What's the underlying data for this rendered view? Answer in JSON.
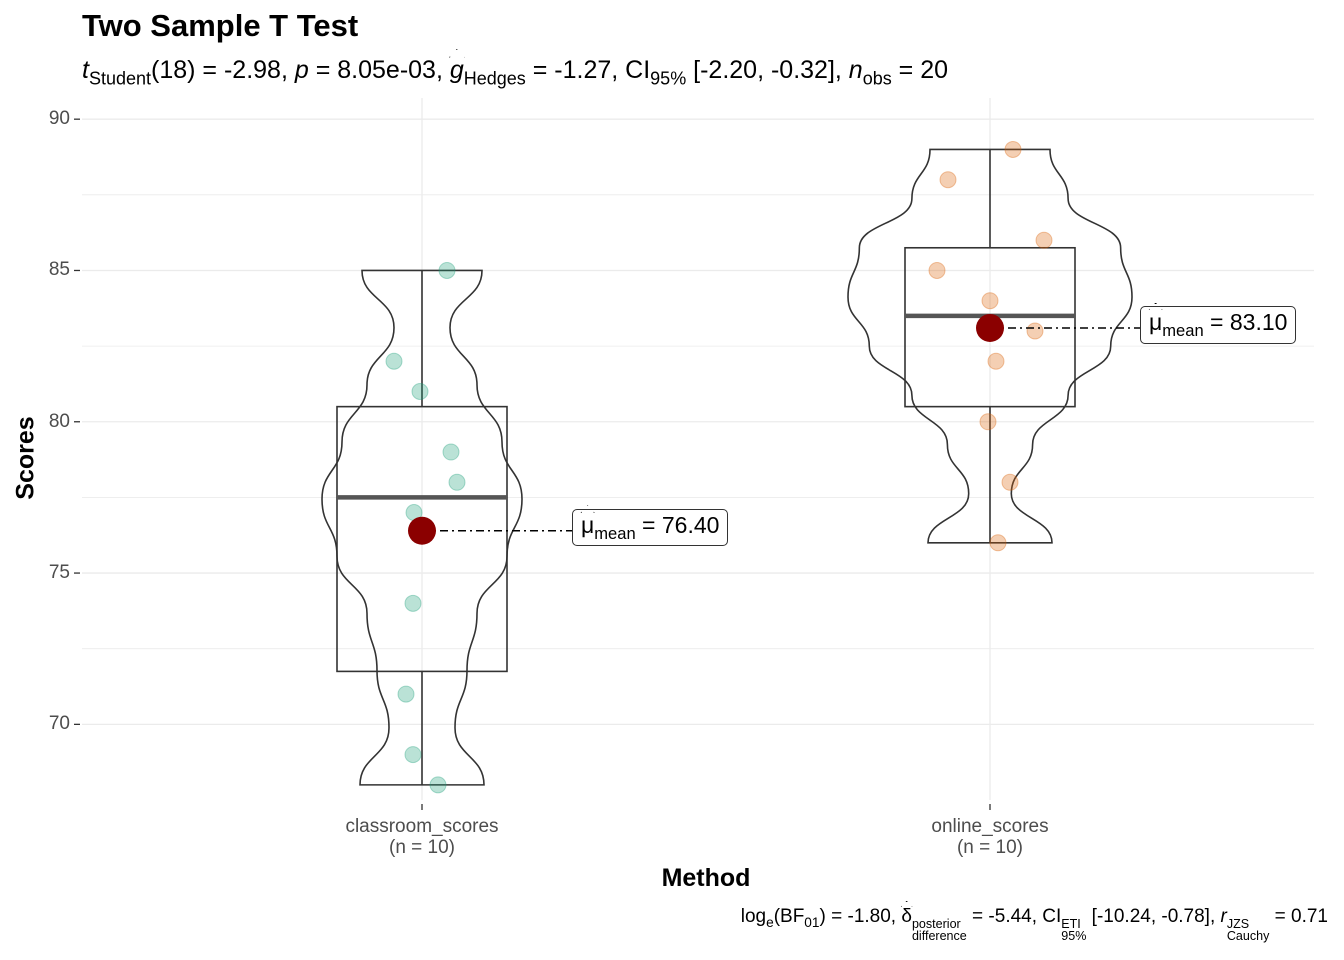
{
  "title": "Two Sample T Test",
  "subtitle": {
    "t_symbol": "t",
    "t_sub": "Student",
    "df": "(18)",
    "t_value": " = -2.98, ",
    "p_symbol": "p",
    "p_value": " = 8.05e-03, ",
    "g_symbol": "g",
    "g_sub": "Hedges",
    "g_value": " = -1.27, CI",
    "ci_sub": "95%",
    "ci_value": " [-2.20, -0.32], ",
    "n_symbol": "n",
    "n_sub": "obs",
    "n_value": " = 20"
  },
  "caption": {
    "log_text": "log",
    "log_sub": "e",
    "bf_text": "(BF",
    "bf_sub": "01",
    "bf_value": ") = -1.80, ",
    "delta_symbol": "δ",
    "delta_sup": "posterior",
    "delta_sub": "difference",
    "delta_value": " = -5.44, CI",
    "ci_sup": "ETI",
    "ci_sub": "95%",
    "ci_value": " [-10.24, -0.78], ",
    "r_symbol": "r",
    "r_sup": "JZS",
    "r_sub": "Cauchy",
    "r_value": " = 0.71"
  },
  "chart_data": {
    "type": "violin-box-scatter",
    "xlabel": "Method",
    "ylabel": "Scores",
    "ylim": [
      67.5,
      90.7
    ],
    "yticks": [
      70,
      75,
      80,
      85,
      90
    ],
    "grid": true,
    "colors": {
      "classroom": "#1B9E77",
      "online": "#D95F02",
      "mean": "#8B0000"
    },
    "groups": [
      {
        "name": "classroom_scores",
        "n_label": "(n = 10)",
        "points": [
          85,
          82,
          81,
          79,
          78,
          77,
          74,
          71,
          69,
          68
        ],
        "box": {
          "q1": 71.75,
          "median": 77.5,
          "q3": 80.5,
          "min": 68,
          "max": 85
        },
        "mean": 76.4,
        "mean_label_symbol": "μ",
        "mean_label_sub": "mean",
        "mean_label_value": " = 76.40"
      },
      {
        "name": "online_scores",
        "n_label": "(n = 10)",
        "points": [
          89,
          88,
          86,
          85,
          84,
          83,
          82,
          80,
          78,
          76
        ],
        "box": {
          "q1": 80.5,
          "median": 83.5,
          "q3": 85.75,
          "min": 76,
          "max": 89
        },
        "mean": 83.1,
        "mean_label_symbol": "μ",
        "mean_label_sub": "mean",
        "mean_label_value": " = 83.10"
      }
    ]
  }
}
